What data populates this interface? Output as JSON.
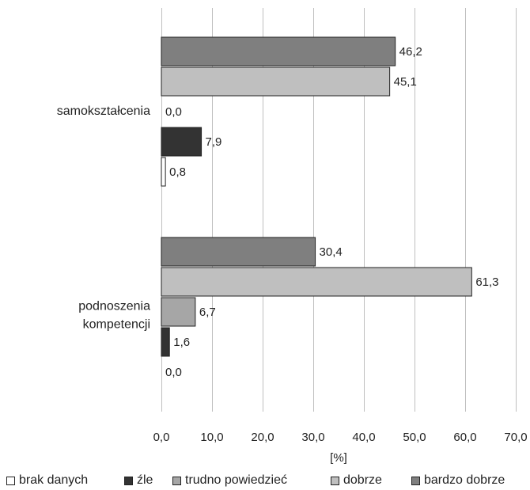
{
  "chart_data": {
    "type": "bar",
    "orientation": "horizontal",
    "categories": [
      "samokształcenia",
      "podnoszenia kompetencji"
    ],
    "series": [
      {
        "name": "bardzo dobrze",
        "values": [
          46.2,
          30.4
        ],
        "labels": [
          "46,2",
          "30,4"
        ],
        "color": "#7f7f7f"
      },
      {
        "name": "dobrze",
        "values": [
          45.1,
          61.3
        ],
        "labels": [
          "45,1",
          "61,3"
        ],
        "color": "#bfbfbf"
      },
      {
        "name": "trudno powiedzieć",
        "values": [
          0.0,
          6.7
        ],
        "labels": [
          "0,0",
          "6,7"
        ],
        "color": "#a6a6a6"
      },
      {
        "name": "źle",
        "values": [
          7.9,
          1.6
        ],
        "labels": [
          "7,9",
          "1,6"
        ],
        "color": "#333333"
      },
      {
        "name": "brak danych",
        "values": [
          0.8,
          0.0
        ],
        "labels": [
          "0,8",
          "0,0"
        ],
        "color": "#ffffff"
      }
    ],
    "xlim": [
      0,
      70
    ],
    "xticks": [
      0,
      10,
      20,
      30,
      40,
      50,
      60,
      70
    ],
    "xtick_labels": [
      "0,0",
      "10,0",
      "20,0",
      "30,0",
      "40,0",
      "50,0",
      "60,0",
      "70,0"
    ],
    "xlabel": "[%]",
    "category_labels": [
      [
        "samokształcenia"
      ],
      [
        "podnoszenia",
        "kompetencji"
      ]
    ],
    "legend": {
      "position": "bottom",
      "items": [
        {
          "label": "brak danych",
          "color": "#ffffff"
        },
        {
          "label": "źle",
          "color": "#333333"
        },
        {
          "label": "trudno powiedzieć",
          "color": "#a6a6a6"
        },
        {
          "label": "dobrze",
          "color": "#bfbfbf"
        },
        {
          "label": "bardzo dobrze",
          "color": "#7f7f7f"
        }
      ]
    },
    "grid": true
  }
}
